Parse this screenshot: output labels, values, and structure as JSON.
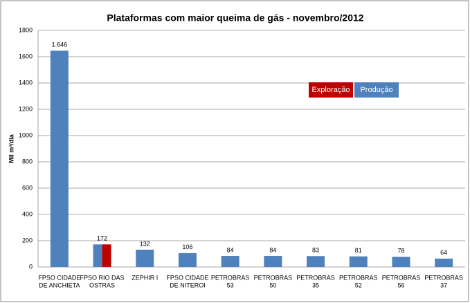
{
  "chart_data": {
    "type": "bar",
    "title": "Plataformas com maior queima de gás - novembro/2012",
    "y_label": "Mil m³/dia",
    "categories": [
      [
        "FPSO CIDADE",
        "DE ANCHIETA"
      ],
      [
        "FPSO RIO DAS",
        "OSTRAS"
      ],
      [
        "ZEPHIR I"
      ],
      [
        "FPSO CIDADE",
        "DE NITEROI"
      ],
      [
        "PETROBRAS",
        "53"
      ],
      [
        "PETROBRAS",
        "50"
      ],
      [
        "PETROBRAS",
        "35"
      ],
      [
        "PETROBRAS",
        "52"
      ],
      [
        "PETROBRAS",
        "56"
      ],
      [
        "PETROBRAS",
        "37"
      ]
    ],
    "series": [
      {
        "name": "Exploração",
        "color": "#c00000",
        "values": [
          null,
          172,
          null,
          null,
          null,
          null,
          null,
          null,
          null,
          null
        ]
      },
      {
        "name": "Produção",
        "color": "#4f81bd",
        "values": [
          1646,
          172,
          132,
          106,
          84,
          84,
          83,
          81,
          78,
          64
        ],
        "value_labels": [
          "1.646",
          "172",
          "132",
          "106",
          "84",
          "84",
          "83",
          "81",
          "78",
          "64"
        ]
      }
    ],
    "ylim": [
      0,
      1800
    ],
    "yticks": [
      0,
      200,
      400,
      600,
      800,
      1000,
      1200,
      1400,
      1600,
      1800
    ],
    "grid": true
  }
}
